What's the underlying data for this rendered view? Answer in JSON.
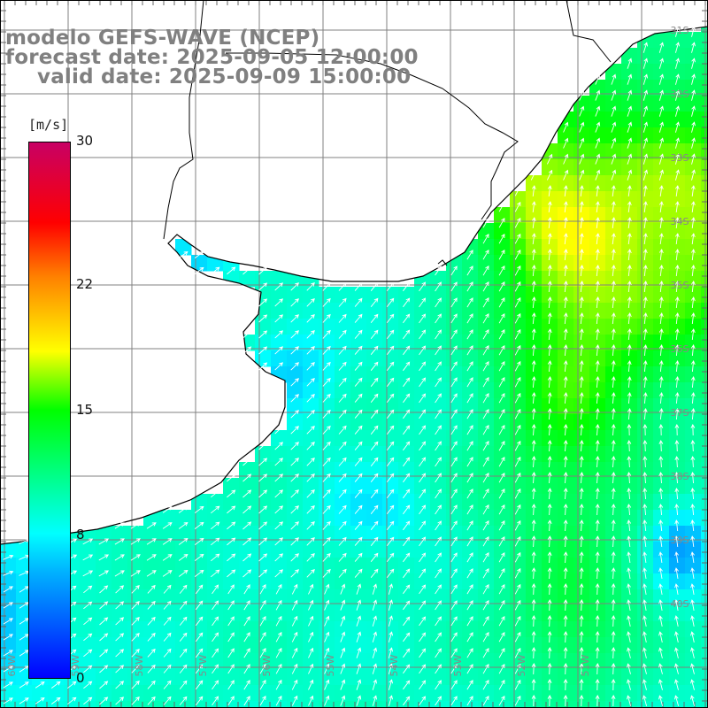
{
  "title": {
    "model": "modelo GEFS-WAVE (NCEP)",
    "forecast": "forecast date: 2025-09-05 12:00:00",
    "valid": "valid date: 2025-09-09 15:00:00"
  },
  "colorbar": {
    "units": "[m/s]",
    "ticks": [
      "30",
      "22",
      "15",
      "8",
      "0"
    ],
    "tick_values": [
      30,
      22,
      15,
      8,
      0
    ],
    "range": [
      0,
      30
    ],
    "colors": [
      "#0000ff",
      "#00b4ff",
      "#00ffff",
      "#00ff00",
      "#ffff00",
      "#ff8000",
      "#ff0000",
      "#c80064"
    ]
  },
  "map": {
    "lat_labels": [
      "31S",
      "32S",
      "33S",
      "34S",
      "35S",
      "36S",
      "37S",
      "38S",
      "39S",
      "40S"
    ],
    "lon_labels": [
      "60W",
      "59W",
      "58W",
      "57W",
      "56W",
      "55W",
      "54W",
      "53W",
      "52W",
      "51W"
    ],
    "land_color": "#ffffff",
    "grid_color": "#808080",
    "coast_color": "#000000",
    "arrow_color": "#ffffff",
    "field": "wind speed and direction"
  }
}
